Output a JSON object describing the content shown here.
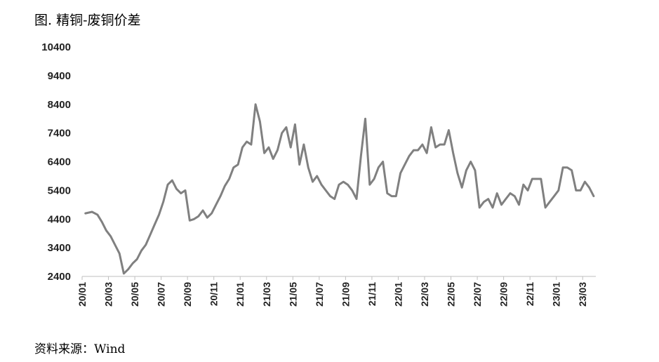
{
  "title": "图. 精铜-废铜价差",
  "source": "资料来源：Wind",
  "chart_data": {
    "type": "line",
    "title": "图. 精铜-废铜价差",
    "xlabel": "",
    "ylabel": "",
    "ylim": [
      2400,
      10400
    ],
    "yticks": [
      2400,
      3400,
      4400,
      5400,
      6400,
      7400,
      8400,
      9400,
      10400
    ],
    "x_tick_labels": [
      "20/01",
      "20/03",
      "20/05",
      "20/07",
      "20/09",
      "20/11",
      "21/01",
      "21/03",
      "21/05",
      "21/07",
      "21/09",
      "21/11",
      "22/01",
      "22/03",
      "22/05",
      "22/07",
      "22/09",
      "22/11",
      "23/01",
      "23/03"
    ],
    "x_range": [
      "2020-01",
      "2023-04"
    ],
    "grid": false,
    "legend": "none",
    "line_color": "#808080",
    "series": [
      {
        "name": "",
        "x": [
          "2020-01",
          "2020-01",
          "2020-02",
          "2020-02",
          "2020-02",
          "2020-03",
          "2020-03",
          "2020-03",
          "2020-04",
          "2020-04",
          "2020-04",
          "2020-05",
          "2020-05",
          "2020-05",
          "2020-06",
          "2020-06",
          "2020-06",
          "2020-07",
          "2020-07",
          "2020-07",
          "2020-08",
          "2020-08",
          "2020-08",
          "2020-09",
          "2020-09",
          "2020-09",
          "2020-10",
          "2020-10",
          "2020-10",
          "2020-11",
          "2020-11",
          "2020-11",
          "2020-12",
          "2020-12",
          "2020-12",
          "2021-01",
          "2021-01",
          "2021-01",
          "2021-02",
          "2021-02",
          "2021-02",
          "2021-03",
          "2021-03",
          "2021-03",
          "2021-04",
          "2021-04",
          "2021-04",
          "2021-05",
          "2021-05",
          "2021-05",
          "2021-06",
          "2021-06",
          "2021-06",
          "2021-07",
          "2021-07",
          "2021-07",
          "2021-08",
          "2021-08",
          "2021-08",
          "2021-09",
          "2021-09",
          "2021-09",
          "2021-10",
          "2021-10",
          "2021-10",
          "2021-11",
          "2021-11",
          "2021-11",
          "2021-12",
          "2021-12",
          "2021-12",
          "2022-01",
          "2022-01",
          "2022-01",
          "2022-02",
          "2022-02",
          "2022-02",
          "2022-03",
          "2022-03",
          "2022-03",
          "2022-04",
          "2022-04",
          "2022-04",
          "2022-05",
          "2022-05",
          "2022-05",
          "2022-06",
          "2022-06",
          "2022-06",
          "2022-07",
          "2022-07",
          "2022-07",
          "2022-08",
          "2022-08",
          "2022-08",
          "2022-09",
          "2022-09",
          "2022-09",
          "2022-10",
          "2022-10",
          "2022-10",
          "2022-11",
          "2022-11",
          "2022-11",
          "2022-12",
          "2022-12",
          "2022-12",
          "2023-01",
          "2023-01",
          "2023-01",
          "2023-02",
          "2023-02",
          "2023-02",
          "2023-03",
          "2023-03",
          "2023-03"
        ],
        "values": [
          4600,
          4650,
          4550,
          4300,
          4000,
          3800,
          3500,
          3200,
          2500,
          2650,
          2850,
          3000,
          3300,
          3500,
          3850,
          4200,
          4550,
          5000,
          5600,
          5750,
          5450,
          5300,
          5400,
          4350,
          4400,
          4500,
          4700,
          4450,
          4600,
          4900,
          5200,
          5550,
          5800,
          6200,
          6300,
          6900,
          7100,
          7000,
          8400,
          7800,
          6700,
          6900,
          6500,
          6800,
          7400,
          7600,
          6900,
          7700,
          6300,
          7000,
          6200,
          5700,
          5900,
          5600,
          5400,
          5200,
          5100,
          5600,
          5700,
          5600,
          5400,
          5100,
          6600,
          7900,
          5600,
          5800,
          6200,
          6400,
          5300,
          5200,
          5200,
          6000,
          6300,
          6600,
          6800,
          6800,
          7000,
          6700,
          7600,
          6900,
          7000,
          7000,
          7500,
          6700,
          6000,
          5500,
          6100,
          6400,
          6100,
          4800,
          5000,
          5100,
          4800,
          5300,
          4900,
          5100,
          5300,
          5200,
          4900,
          5600,
          5400,
          5800,
          5800,
          5800,
          4800,
          5000,
          5200,
          5400,
          6200,
          6200,
          6100,
          5400,
          5400,
          5700,
          5500,
          5200
        ]
      }
    ]
  }
}
